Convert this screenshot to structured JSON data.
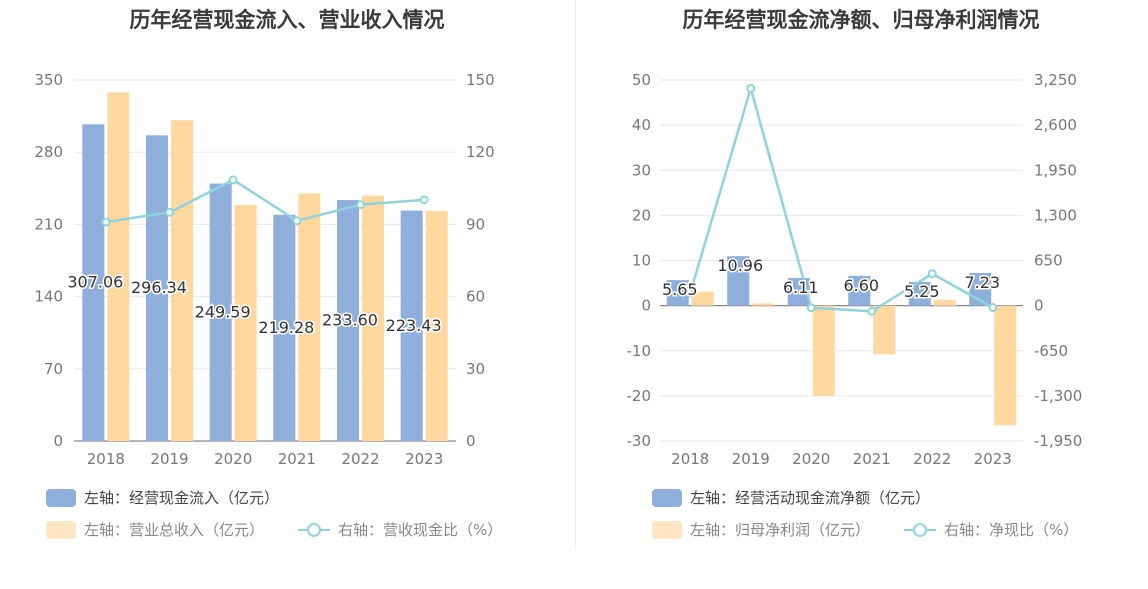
{
  "chart_data": [
    {
      "type": "bar",
      "title": "历年经营现金流入、营业收入情况",
      "categories": [
        "2018",
        "2019",
        "2020",
        "2021",
        "2022",
        "2023"
      ],
      "left_axis": {
        "ticks": [
          "0",
          "70",
          "140",
          "210",
          "280",
          "350"
        ],
        "min": 0,
        "max": 350
      },
      "right_axis": {
        "ticks": [
          "0",
          "30",
          "60",
          "90",
          "120",
          "150"
        ],
        "min": 0,
        "max": 150
      },
      "series": [
        {
          "name": "左轴：经营现金流入（亿元）",
          "axis": "left",
          "kind": "bar",
          "color": "#8eaedb",
          "values": [
            307.06,
            296.34,
            249.59,
            219.28,
            233.6,
            223.43
          ],
          "labels": [
            "307.06",
            "296.34",
            "249.59",
            "219.28",
            "233.60",
            "223.43"
          ]
        },
        {
          "name": "左轴：营业总收入（亿元）",
          "axis": "left",
          "kind": "bar",
          "color": "#fed89e",
          "values": [
            338,
            311,
            229,
            240,
            238,
            223
          ]
        },
        {
          "name": "右轴：营收现金比（%）",
          "axis": "right",
          "kind": "line",
          "color": "#8fd4dc",
          "values": [
            91,
            95,
            108.5,
            91.5,
            98.2,
            100.2
          ]
        }
      ],
      "legend_position": "bottom-left",
      "grid": true
    },
    {
      "type": "bar",
      "title": "历年经营现金流净额、归母净利润情况",
      "categories": [
        "2018",
        "2019",
        "2020",
        "2021",
        "2022",
        "2023"
      ],
      "left_axis": {
        "ticks": [
          "-30",
          "-20",
          "-10",
          "0",
          "10",
          "20",
          "30",
          "40",
          "50"
        ],
        "min": -30,
        "max": 50
      },
      "right_axis": {
        "ticks": [
          "-1,950",
          "-1,300",
          "-650",
          "0",
          "650",
          "1,300",
          "1,950",
          "2,600",
          "3,250"
        ],
        "min": -1950,
        "max": 3250
      },
      "series": [
        {
          "name": "左轴：经营活动现金流净额（亿元）",
          "axis": "left",
          "kind": "bar",
          "color": "#8eaedb",
          "values": [
            5.65,
            10.96,
            6.11,
            6.6,
            5.25,
            7.23
          ],
          "labels": [
            "5.65",
            "10.96",
            "6.11",
            "6.60",
            "5.25",
            "7.23"
          ]
        },
        {
          "name": "左轴：归母净利润（亿元）",
          "axis": "left",
          "kind": "bar",
          "color": "#fed89e",
          "values": [
            3.1,
            0.5,
            -20.0,
            -10.8,
            1.3,
            -26.5
          ]
        },
        {
          "name": "右轴：净现比（%）",
          "axis": "right",
          "kind": "line",
          "color": "#8fd4dc",
          "values": [
            182,
            3130,
            -30,
            -82,
            460,
            -27
          ]
        }
      ],
      "legend_position": "bottom-left",
      "grid": true
    }
  ]
}
